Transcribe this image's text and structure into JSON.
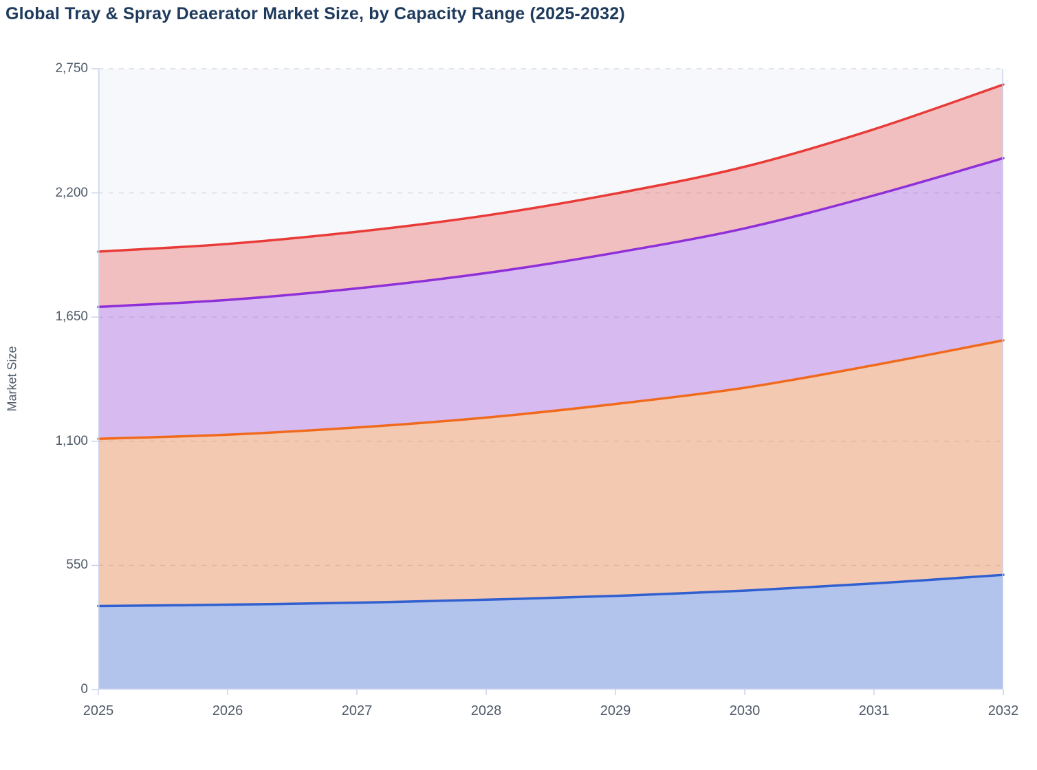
{
  "title": "Global Tray & Spray Deaerator Market Size, by Capacity Range (2025-2032)",
  "y_axis": {
    "label": "Market Size",
    "tick_labels": [
      "0",
      "550",
      "1,100",
      "1,650",
      "2,200",
      "2,750"
    ],
    "tick_values": [
      0,
      550,
      1100,
      1650,
      2200,
      2750
    ],
    "max": 2750
  },
  "x_axis": {
    "tick_labels": [
      "2025",
      "2026",
      "2027",
      "2028",
      "2029",
      "2030",
      "2031",
      "2032"
    ]
  },
  "chart_data": {
    "type": "area",
    "stacked": true,
    "smooth_curves": true,
    "legend": "none",
    "grid": "horizontal-dashed",
    "title": "Global Tray & Spray Deaerator Market Size, by Capacity Range (2025-2032)",
    "xlabel": "",
    "ylabel": "Market Size",
    "ylim": [
      0,
      2750
    ],
    "x": [
      2025,
      2026,
      2027,
      2028,
      2029,
      2030,
      2031,
      2032
    ],
    "series": [
      {
        "name": "series-1-blue",
        "line_color": "#3060d0",
        "fill_opacity": 0.35,
        "values": [
          370,
          376,
          385,
          398,
          415,
          438,
          470,
          508
        ]
      },
      {
        "name": "series-2-orange",
        "line_color": "#f06a1d",
        "fill_opacity": 0.33,
        "values": [
          741,
          753,
          776,
          807,
          850,
          899,
          967,
          1039
        ]
      },
      {
        "name": "series-3-purple",
        "line_color": "#8e2fd8",
        "fill_opacity": 0.3,
        "values": [
          584,
          597,
          616,
          640,
          670,
          706,
          752,
          807
        ]
      },
      {
        "name": "series-4-red",
        "line_color": "#e83b38",
        "fill_opacity": 0.3,
        "values": [
          245,
          248,
          251,
          255,
          262,
          273,
          293,
          326
        ]
      }
    ],
    "stacked_boundary_tops": {
      "series-1-blue": [
        370,
        376,
        385,
        398,
        415,
        438,
        470,
        508
      ],
      "series-2-orange": [
        1111,
        1129,
        1161,
        1205,
        1265,
        1337,
        1437,
        1547
      ],
      "series-3-purple": [
        1695,
        1726,
        1777,
        1845,
        1935,
        2043,
        2189,
        2354
      ],
      "series-4-red": [
        1940,
        1974,
        2028,
        2100,
        2197,
        2316,
        2482,
        2680
      ]
    }
  },
  "colors": {
    "title_text": "#1e3a5c",
    "axis_line": "#c9d2ee",
    "tick_text": "#4f5a68",
    "gridline": "#d9dbe0",
    "plot_background": "#f7f8fb",
    "page_background": "#ffffff"
  }
}
